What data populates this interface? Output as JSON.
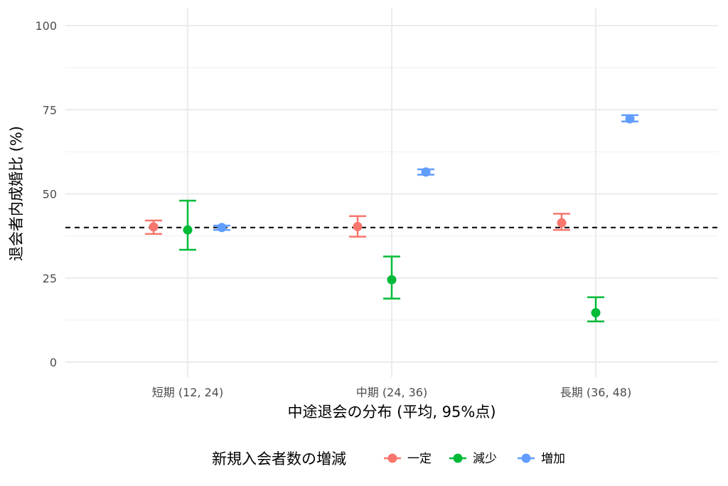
{
  "chart_data": {
    "type": "scatter",
    "title": "",
    "xlabel": "中途退会の分布 (平均, 95%点)",
    "ylabel": "退会者内成婚比 (%)",
    "ylim": [
      0,
      100
    ],
    "yticks": [
      0,
      25,
      50,
      75,
      100
    ],
    "categories": [
      "短期 (12, 24)",
      "中期 (24, 36)",
      "長期 (36, 48)"
    ],
    "reference_line": 40,
    "grid": true,
    "legend_position": "bottom",
    "legend": {
      "title": "新規入会者数の増減",
      "entries": [
        "一定",
        "減少",
        "増加"
      ]
    },
    "series": [
      {
        "name": "一定",
        "color": "#f8766d",
        "values": [
          40.2,
          40.3,
          41.4
        ],
        "lower": [
          38.1,
          37.3,
          39.3
        ],
        "upper": [
          42.1,
          43.4,
          44.1
        ]
      },
      {
        "name": "減少",
        "color": "#00ba38",
        "values": [
          39.3,
          24.5,
          14.7
        ],
        "lower": [
          33.4,
          18.9,
          12.1
        ],
        "upper": [
          48.0,
          31.4,
          19.3
        ]
      },
      {
        "name": "増加",
        "color": "#619cff",
        "values": [
          40.0,
          56.5,
          72.3
        ],
        "lower": [
          39.3,
          55.7,
          71.5
        ],
        "upper": [
          40.6,
          57.3,
          73.4
        ]
      }
    ]
  }
}
